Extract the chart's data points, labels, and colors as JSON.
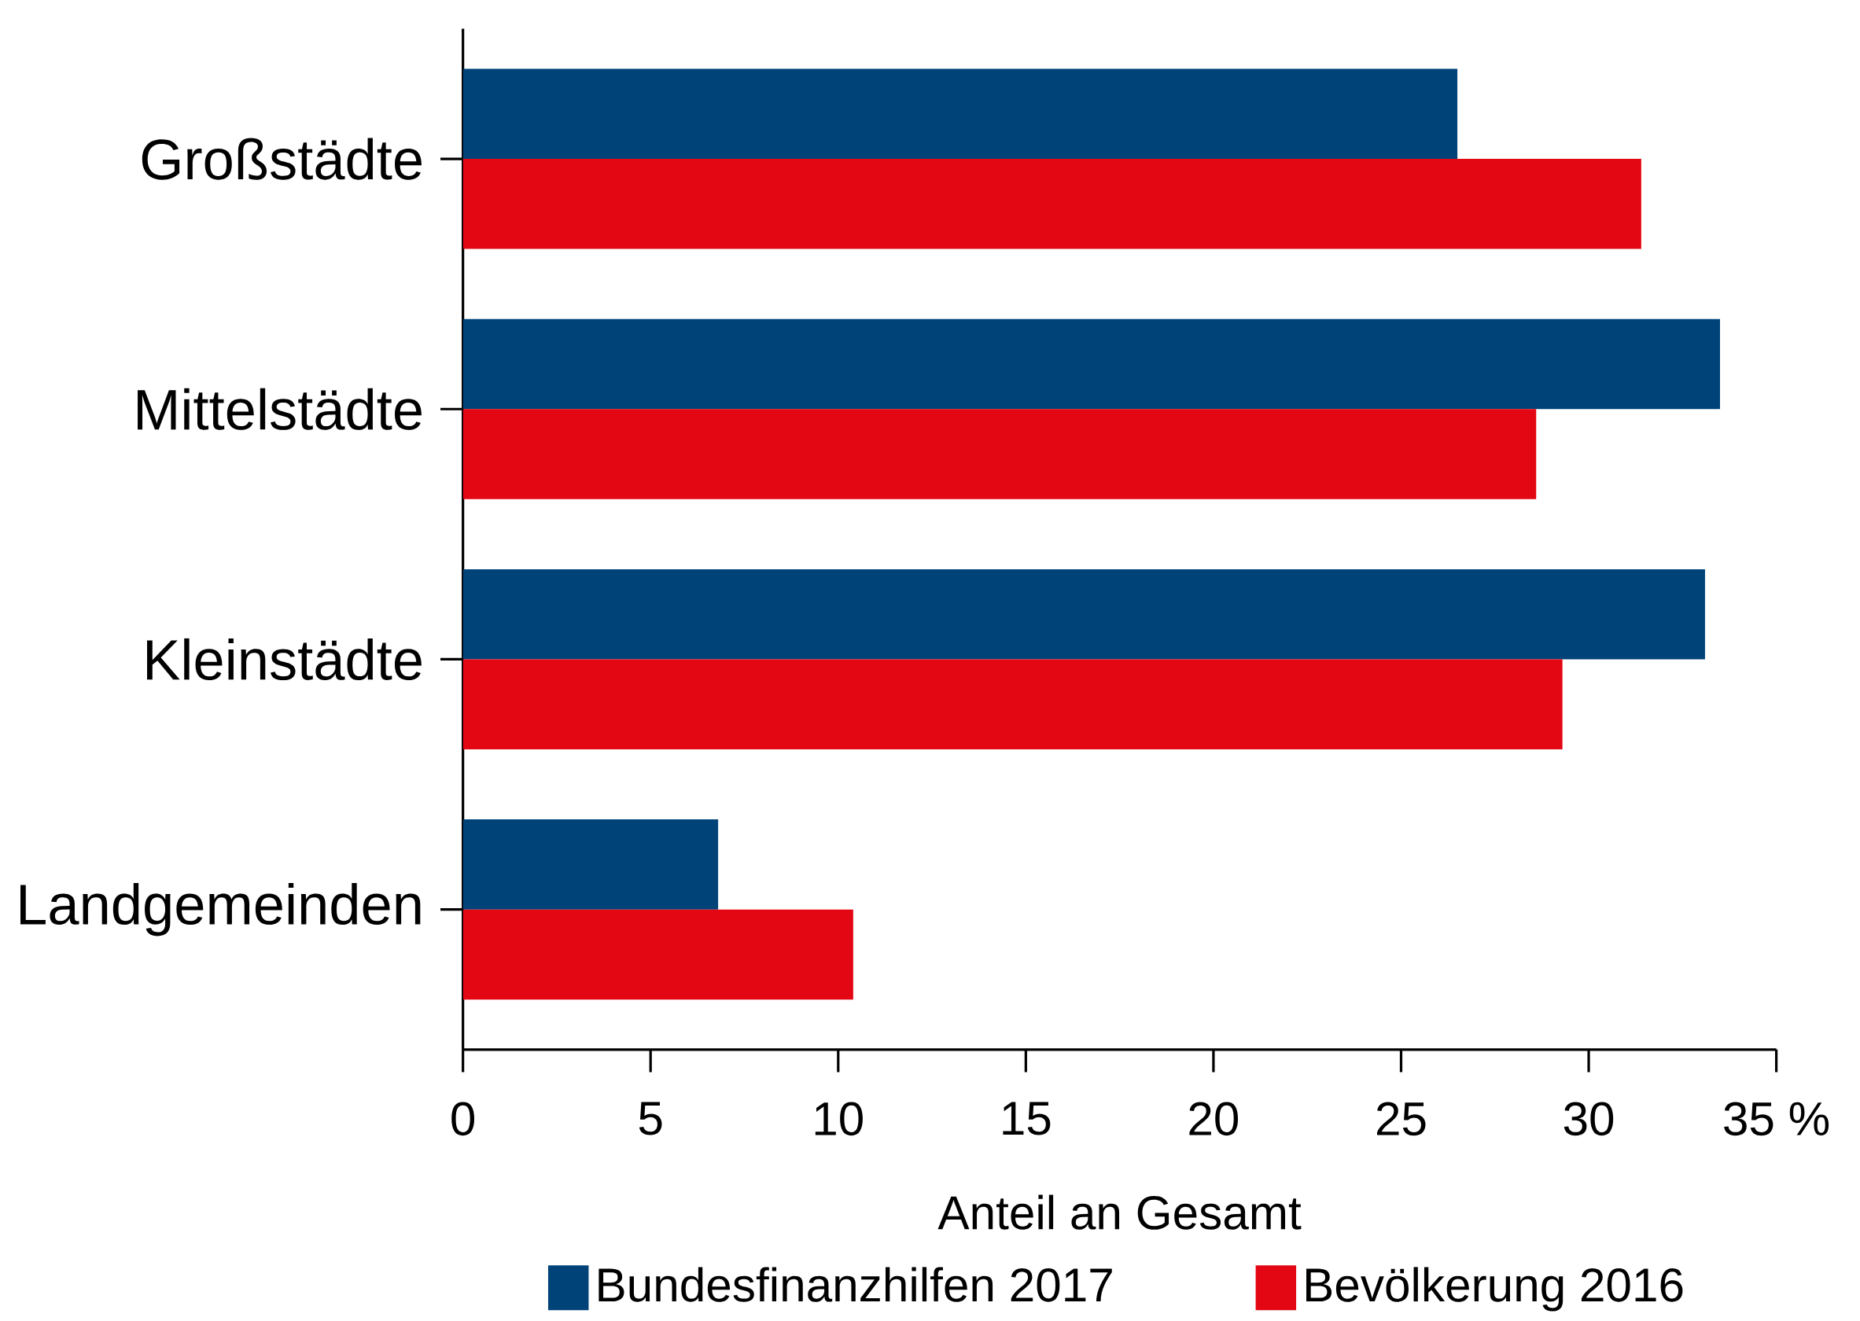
{
  "chart_data": {
    "type": "bar",
    "orientation": "horizontal",
    "categories": [
      "Großstädte",
      "Mittelstädte",
      "Kleinstädte",
      "Landgemeinden"
    ],
    "series": [
      {
        "name": "Bundesfinanzhilfen 2017",
        "color": "#004379",
        "values": [
          26.5,
          33.5,
          33.1,
          6.8
        ]
      },
      {
        "name": "Bevölkerung 2016",
        "color": "#e30613",
        "values": [
          31.4,
          28.6,
          29.3,
          10.4
        ]
      }
    ],
    "xlabel": "Anteil an Gesamt",
    "xlim": [
      0,
      35
    ],
    "xticks": [
      0,
      5,
      10,
      15,
      20,
      25,
      30,
      {
        "value": 35,
        "label": "35  %"
      }
    ],
    "legend": "bottom",
    "grid": false
  }
}
